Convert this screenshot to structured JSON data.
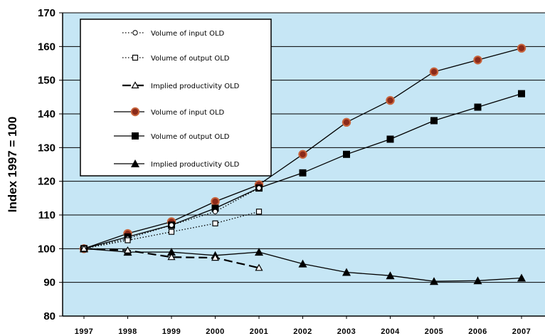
{
  "chart_data": {
    "type": "line",
    "title": "",
    "xlabel": "",
    "ylabel": "Index 1997 = 100",
    "ylim": [
      80,
      170
    ],
    "yticks": [
      80,
      90,
      100,
      110,
      120,
      130,
      140,
      150,
      160,
      170
    ],
    "categories": [
      "1997",
      "1998",
      "1999",
      "2000",
      "2001",
      "2002",
      "2003",
      "2004",
      "2005",
      "2006",
      "2007"
    ],
    "grid": "horizontal",
    "legend_position": "top-left",
    "colors": {
      "plot_background": "#c6e6f5",
      "grid": "#000000",
      "line": "#000000",
      "input_marker_fill": "#8b2a1a",
      "input_marker_edge": "#c8643c"
    },
    "series": [
      {
        "name": "Volume of input OLD",
        "style": "dotted",
        "marker": "open-circle",
        "values": [
          100,
          103,
          107,
          111,
          118,
          null,
          null,
          null,
          null,
          null,
          null
        ]
      },
      {
        "name": "Volume of output OLD",
        "style": "dotted",
        "marker": "open-square",
        "values": [
          100,
          102.5,
          105,
          107.5,
          111,
          null,
          null,
          null,
          null,
          null,
          null
        ]
      },
      {
        "name": "Implied productivity OLD",
        "style": "dashed",
        "marker": "open-triangle",
        "values": [
          100,
          99.5,
          97.5,
          97.3,
          94.3,
          null,
          null,
          null,
          null,
          null,
          null
        ]
      },
      {
        "name": "Volume of input OLD",
        "style": "solid",
        "marker": "filled-circle",
        "values": [
          100,
          104.5,
          108,
          114,
          119,
          128,
          137.5,
          144,
          152.5,
          156,
          159.5
        ]
      },
      {
        "name": "Volume of output OLD",
        "style": "solid",
        "marker": "filled-square",
        "values": [
          100,
          103.5,
          107,
          112,
          118,
          122.5,
          128,
          132.5,
          138,
          142,
          146
        ]
      },
      {
        "name": "Implied productivity OLD",
        "style": "solid",
        "marker": "filled-triangle",
        "values": [
          100,
          99,
          99,
          98,
          99,
          95.5,
          93,
          92,
          90.3,
          90.5,
          91.3
        ]
      }
    ]
  }
}
